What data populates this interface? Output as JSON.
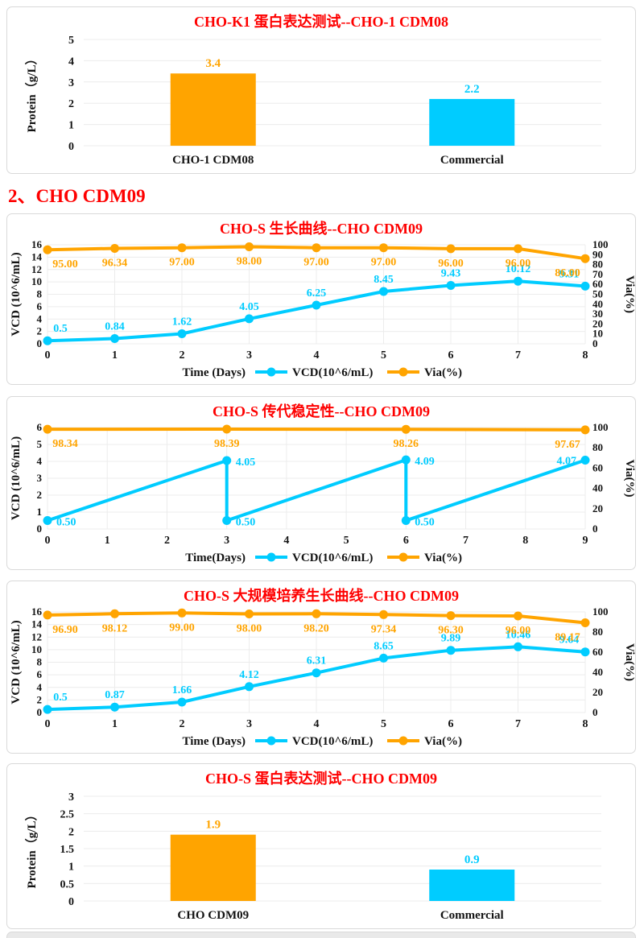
{
  "page": {
    "section_heading": "2、CHO CDM09"
  },
  "colors": {
    "title_red": "#fe0000",
    "orange": "#ffa400",
    "cyan": "#00ccff",
    "grid": "#ececec",
    "axis_text": "#131313",
    "panel_border": "#d9d9d9"
  },
  "chart_data": [
    {
      "type": "bar",
      "title": "CHO-K1 蛋白表达测试--CHO-1 CDM08",
      "ylabel": "Protein（g/L）",
      "ylim": [
        0,
        5
      ],
      "yticks": [
        "0",
        "1",
        "2",
        "3",
        "4",
        "5"
      ],
      "categories": [
        "CHO-1 CDM08",
        "Commercial"
      ],
      "values": [
        3.4,
        2.2
      ],
      "value_labels": [
        "3.4",
        "2.2"
      ],
      "bar_colors": [
        "#ffa400",
        "#00ccff"
      ],
      "grid": "horizontal"
    },
    {
      "type": "line",
      "title": "CHO-S 生长曲线--CHO CDM09",
      "xlabel": "Time (Days)",
      "xlim": [
        0,
        8
      ],
      "xticks": [
        "0",
        "1",
        "2",
        "3",
        "4",
        "5",
        "6",
        "7",
        "8"
      ],
      "left_axis": {
        "label": "VCD (10^6/mL)",
        "range": [
          0,
          16
        ],
        "ticks": [
          "0",
          "2",
          "4",
          "6",
          "8",
          "10",
          "12",
          "14",
          "16"
        ]
      },
      "right_axis": {
        "label": "Via(%)",
        "range": [
          0,
          100
        ],
        "ticks": [
          "0",
          "10",
          "20",
          "30",
          "40",
          "50",
          "60",
          "70",
          "80",
          "90",
          "100"
        ]
      },
      "series": [
        {
          "name": "VCD(10^6/mL)",
          "axis": "left",
          "color": "#00ccff",
          "label_pos": "above",
          "x": [
            0,
            1,
            2,
            3,
            4,
            5,
            6,
            7,
            8
          ],
          "values": [
            0.5,
            0.84,
            1.62,
            4.05,
            6.25,
            8.45,
            9.43,
            10.12,
            9.31
          ],
          "labels": [
            "0.5",
            "0.84",
            "1.62",
            "4.05",
            "6.25",
            "8.45",
            "9.43",
            "10.12",
            "9.31"
          ]
        },
        {
          "name": "Via(%)",
          "axis": "right",
          "color": "#ffa400",
          "label_pos": "below",
          "x": [
            0,
            1,
            2,
            3,
            4,
            5,
            6,
            7,
            8
          ],
          "values": [
            95.0,
            96.34,
            97.0,
            98.0,
            97.0,
            97.0,
            96.0,
            96.0,
            86.0
          ],
          "labels": [
            "95.00",
            "96.34",
            "97.00",
            "98.00",
            "97.00",
            "97.00",
            "96.00",
            "96.00",
            "86.00"
          ]
        }
      ],
      "legend": [
        "VCD(10^6/mL)",
        "Via(%)"
      ],
      "legend_position": "bottom",
      "grid": "both"
    },
    {
      "type": "line",
      "title": "CHO-S 传代稳定性--CHO CDM09",
      "xlabel": "Time(Days)",
      "xlim": [
        0,
        9
      ],
      "xticks": [
        "0",
        "1",
        "2",
        "3",
        "4",
        "5",
        "6",
        "7",
        "8",
        "9"
      ],
      "left_axis": {
        "label": "VCD (10^6/mL)",
        "range": [
          0,
          6
        ],
        "ticks": [
          "0",
          "1",
          "2",
          "3",
          "4",
          "5",
          "6"
        ]
      },
      "right_axis": {
        "label": "Via(%)",
        "range": [
          0,
          100
        ],
        "ticks": [
          "0",
          "20",
          "40",
          "60",
          "80",
          "100"
        ]
      },
      "series": [
        {
          "name": "VCD(10^6/mL)",
          "axis": "left",
          "color": "#00ccff",
          "label_pos": "right",
          "x": [
            0,
            3,
            3,
            6,
            6,
            9
          ],
          "values": [
            0.5,
            4.05,
            0.5,
            4.09,
            0.5,
            4.07
          ],
          "labels": [
            "0.50",
            "4.05",
            "0.50",
            "4.09",
            "0.50",
            "4.07"
          ]
        },
        {
          "name": "Via(%)",
          "axis": "right",
          "color": "#ffa400",
          "label_pos": "below",
          "x": [
            0,
            3,
            6,
            9
          ],
          "values": [
            98.34,
            98.39,
            98.26,
            97.67
          ],
          "labels": [
            "98.34",
            "98.39",
            "98.26",
            "97.67"
          ]
        }
      ],
      "legend": [
        "VCD(10^6/mL)",
        "Via(%)"
      ],
      "legend_position": "bottom",
      "grid": "both"
    },
    {
      "type": "line",
      "title": "CHO-S 大规模培养生长曲线--CHO CDM09",
      "xlabel": "Time (Days)",
      "xlim": [
        0,
        8
      ],
      "xticks": [
        "0",
        "1",
        "2",
        "3",
        "4",
        "5",
        "6",
        "7",
        "8"
      ],
      "left_axis": {
        "label": "VCD (10^6/mL)",
        "range": [
          0,
          16
        ],
        "ticks": [
          "0",
          "2",
          "4",
          "6",
          "8",
          "10",
          "12",
          "14",
          "16"
        ]
      },
      "right_axis": {
        "label": "Via(%)",
        "range": [
          0,
          100
        ],
        "ticks": [
          "0",
          "20",
          "40",
          "60",
          "80",
          "100"
        ]
      },
      "series": [
        {
          "name": "VCD(10^6/mL)",
          "axis": "left",
          "color": "#00ccff",
          "label_pos": "above",
          "x": [
            0,
            1,
            2,
            3,
            4,
            5,
            6,
            7,
            8
          ],
          "values": [
            0.5,
            0.87,
            1.66,
            4.12,
            6.31,
            8.65,
            9.89,
            10.46,
            9.64
          ],
          "labels": [
            "0.5",
            "0.87",
            "1.66",
            "4.12",
            "6.31",
            "8.65",
            "9.89",
            "10.46",
            "9.64"
          ]
        },
        {
          "name": "Via(%)",
          "axis": "right",
          "color": "#ffa400",
          "label_pos": "below",
          "x": [
            0,
            1,
            2,
            3,
            4,
            5,
            6,
            7,
            8
          ],
          "values": [
            96.9,
            98.12,
            99.0,
            98.0,
            98.2,
            97.34,
            96.3,
            96.0,
            89.17
          ],
          "labels": [
            "96.90",
            "98.12",
            "99.00",
            "98.00",
            "98.20",
            "97.34",
            "96.30",
            "96.00",
            "89.17"
          ]
        }
      ],
      "legend": [
        "VCD(10^6/mL)",
        "Via(%)"
      ],
      "legend_position": "bottom",
      "grid": "both"
    },
    {
      "type": "bar",
      "title": "CHO-S 蛋白表达测试--CHO CDM09",
      "ylabel": "Protein（g/L）",
      "ylim": [
        0,
        3
      ],
      "yticks": [
        "0",
        "0.5",
        "1",
        "1.5",
        "2",
        "2.5",
        "3"
      ],
      "categories": [
        "CHO CDM09",
        "Commercial"
      ],
      "values": [
        1.9,
        0.9
      ],
      "value_labels": [
        "1.9",
        "0.9"
      ],
      "bar_colors": [
        "#ffa400",
        "#00ccff"
      ],
      "grid": "horizontal"
    }
  ]
}
